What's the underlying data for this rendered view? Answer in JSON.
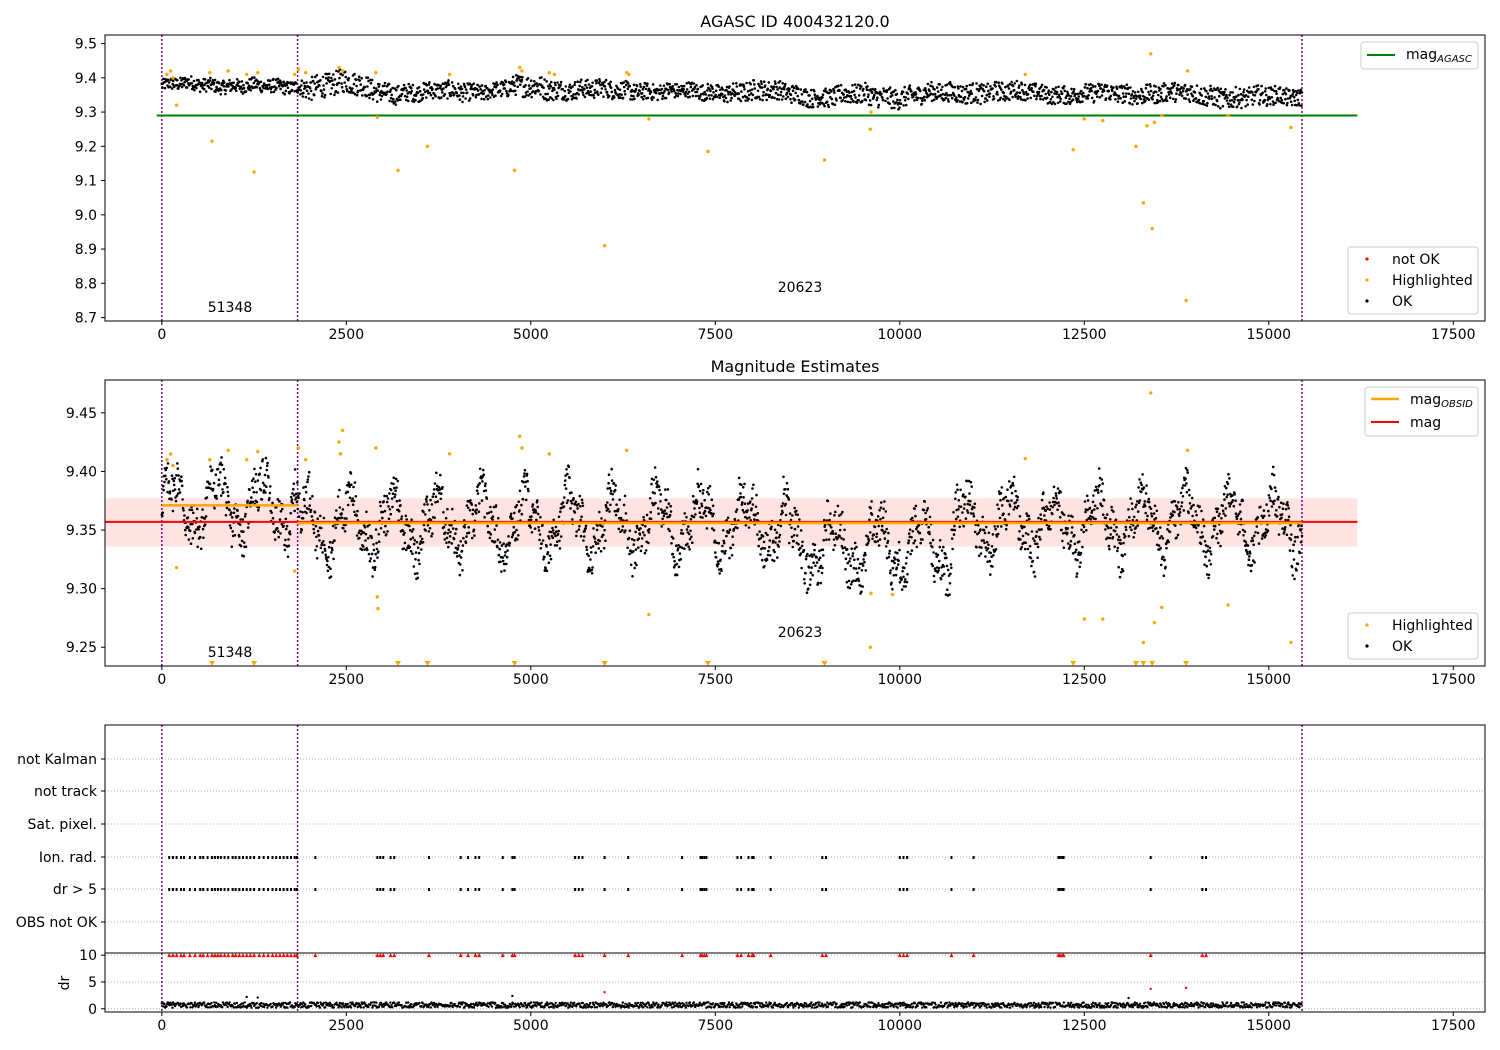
{
  "figure": {
    "title_top": "AGASC ID 400432120.0",
    "title_middle": "Magnitude Estimates"
  },
  "colors": {
    "ok": "#000000",
    "highlighted": "#ffa500",
    "not_ok": "#ff0000",
    "agasc_line": "#008000",
    "obsid_line": "#ffa500",
    "mag_line": "#ff0000",
    "band": "#ffc0c0",
    "obsid_divider": "#800080"
  },
  "legend_top": {
    "line": "mag_AGASC",
    "not_ok": "not OK",
    "highlighted": "Highlighted",
    "ok": "OK"
  },
  "legend_middle": {
    "obsid": "mag_OBSID",
    "mag": "mag",
    "highlighted": "Highlighted",
    "ok": "OK"
  },
  "obsid_labels": [
    "51348",
    "20623"
  ],
  "chart_data": [
    {
      "type": "scatter",
      "title": "AGASC ID 400432120.0",
      "xlim": [
        -770,
        17930
      ],
      "ylim": [
        8.69,
        9.525
      ],
      "xticks": [
        "0",
        "2500",
        "5000",
        "7500",
        "10000",
        "12500",
        "15000",
        "17500"
      ],
      "yticks": [
        "8.7",
        "8.8",
        "8.9",
        "9.0",
        "9.1",
        "9.2",
        "9.3",
        "9.4",
        "9.5"
      ],
      "mag_agasc": 9.29,
      "obsid_boundaries": [
        0,
        1840,
        15450
      ],
      "series": [
        {
          "name": "OK",
          "description": "continuous dense band of OK magnitude samples across x 0 to 15450",
          "x_range": [
            0,
            15450
          ],
          "envelope_upper": [
            [
              0,
              9.395
            ],
            [
              500,
              9.4
            ],
            [
              1000,
              9.4
            ],
            [
              1500,
              9.39
            ],
            [
              1840,
              9.395
            ],
            [
              2000,
              9.41
            ],
            [
              2500,
              9.42
            ],
            [
              3000,
              9.39
            ],
            [
              3500,
              9.38
            ],
            [
              4000,
              9.39
            ],
            [
              4500,
              9.385
            ],
            [
              5000,
              9.41
            ],
            [
              5500,
              9.395
            ],
            [
              6000,
              9.39
            ],
            [
              6500,
              9.39
            ],
            [
              7000,
              9.38
            ],
            [
              7500,
              9.385
            ],
            [
              8000,
              9.39
            ],
            [
              8500,
              9.385
            ],
            [
              9000,
              9.37
            ],
            [
              9500,
              9.38
            ],
            [
              10000,
              9.375
            ],
            [
              10500,
              9.38
            ],
            [
              11000,
              9.39
            ],
            [
              11500,
              9.385
            ],
            [
              12000,
              9.38
            ],
            [
              12500,
              9.38
            ],
            [
              13000,
              9.38
            ],
            [
              13500,
              9.385
            ],
            [
              14000,
              9.38
            ],
            [
              14500,
              9.375
            ],
            [
              15000,
              9.37
            ],
            [
              15450,
              9.37
            ]
          ],
          "envelope_lower": [
            [
              0,
              9.36
            ],
            [
              500,
              9.36
            ],
            [
              1000,
              9.36
            ],
            [
              1500,
              9.35
            ],
            [
              1840,
              9.355
            ],
            [
              2000,
              9.34
            ],
            [
              2500,
              9.35
            ],
            [
              3000,
              9.33
            ],
            [
              3500,
              9.33
            ],
            [
              4000,
              9.335
            ],
            [
              4500,
              9.34
            ],
            [
              5000,
              9.34
            ],
            [
              5500,
              9.34
            ],
            [
              6000,
              9.335
            ],
            [
              6500,
              9.34
            ],
            [
              7000,
              9.335
            ],
            [
              7500,
              9.335
            ],
            [
              8000,
              9.33
            ],
            [
              8500,
              9.33
            ],
            [
              9000,
              9.315
            ],
            [
              9500,
              9.32
            ],
            [
              10000,
              9.315
            ],
            [
              10500,
              9.325
            ],
            [
              11000,
              9.33
            ],
            [
              11500,
              9.33
            ],
            [
              12000,
              9.33
            ],
            [
              12500,
              9.325
            ],
            [
              13000,
              9.325
            ],
            [
              13500,
              9.33
            ],
            [
              14000,
              9.32
            ],
            [
              14500,
              9.315
            ],
            [
              15000,
              9.315
            ],
            [
              15450,
              9.32
            ]
          ]
        },
        {
          "name": "Highlighted",
          "points": [
            [
              70,
              9.41
            ],
            [
              120,
              9.42
            ],
            [
              150,
              9.4
            ],
            [
              200,
              9.32
            ],
            [
              650,
              9.415
            ],
            [
              680,
              9.215
            ],
            [
              900,
              9.42
            ],
            [
              1150,
              9.41
            ],
            [
              1250,
              9.125
            ],
            [
              1300,
              9.415
            ],
            [
              1800,
              9.41
            ],
            [
              1850,
              9.425
            ],
            [
              1950,
              9.415
            ],
            [
              2400,
              9.43
            ],
            [
              2450,
              9.42
            ],
            [
              2900,
              9.415
            ],
            [
              2920,
              9.285
            ],
            [
              3200,
              9.13
            ],
            [
              3600,
              9.2
            ],
            [
              3900,
              9.41
            ],
            [
              4780,
              9.13
            ],
            [
              4850,
              9.43
            ],
            [
              4880,
              9.42
            ],
            [
              5250,
              9.415
            ],
            [
              5320,
              9.41
            ],
            [
              6000,
              8.91
            ],
            [
              6300,
              9.415
            ],
            [
              6330,
              9.41
            ],
            [
              6600,
              9.28
            ],
            [
              7400,
              9.185
            ],
            [
              8980,
              9.16
            ],
            [
              9600,
              9.25
            ],
            [
              9610,
              9.3
            ],
            [
              11700,
              9.41
            ],
            [
              12350,
              9.19
            ],
            [
              12500,
              9.28
            ],
            [
              12750,
              9.275
            ],
            [
              13200,
              9.2
            ],
            [
              13300,
              9.035
            ],
            [
              13350,
              9.26
            ],
            [
              13400,
              9.47
            ],
            [
              13420,
              8.96
            ],
            [
              13450,
              9.27
            ],
            [
              13550,
              9.29
            ],
            [
              13900,
              9.42
            ],
            [
              13880,
              8.75
            ],
            [
              14450,
              9.29
            ],
            [
              15300,
              9.255
            ]
          ]
        },
        {
          "name": "not OK",
          "points": []
        }
      ]
    },
    {
      "type": "scatter",
      "title": "Magnitude Estimates",
      "xlim": [
        -770,
        17930
      ],
      "ylim": [
        9.234,
        9.478
      ],
      "xticks": [
        "0",
        "2500",
        "5000",
        "7500",
        "10000",
        "12500",
        "15000",
        "17500"
      ],
      "yticks": [
        "9.25",
        "9.30",
        "9.35",
        "9.40",
        "9.45"
      ],
      "mag": 9.357,
      "mag_band": [
        9.336,
        9.377
      ],
      "mag_obsid": [
        {
          "x": [
            0,
            1840
          ],
          "y": 9.371
        },
        {
          "x": [
            1840,
            15450
          ],
          "y": 9.356
        }
      ],
      "obsid_boundaries": [
        0,
        1840,
        15450
      ],
      "highlighted_points": [
        [
          70,
          9.41
        ],
        [
          120,
          9.415
        ],
        [
          150,
          9.405
        ],
        [
          200,
          9.318
        ],
        [
          650,
          9.41
        ],
        [
          900,
          9.418
        ],
        [
          1150,
          9.41
        ],
        [
          1300,
          9.417
        ],
        [
          1800,
          9.315
        ],
        [
          1850,
          9.42
        ],
        [
          1950,
          9.41
        ],
        [
          2400,
          9.425
        ],
        [
          2450,
          9.435
        ],
        [
          2420,
          9.415
        ],
        [
          2900,
          9.42
        ],
        [
          2920,
          9.293
        ],
        [
          2930,
          9.283
        ],
        [
          3900,
          9.415
        ],
        [
          4850,
          9.43
        ],
        [
          4880,
          9.42
        ],
        [
          5250,
          9.415
        ],
        [
          6300,
          9.418
        ],
        [
          6600,
          9.278
        ],
        [
          9600,
          9.25
        ],
        [
          9610,
          9.296
        ],
        [
          9900,
          9.295
        ],
        [
          11700,
          9.411
        ],
        [
          12500,
          9.274
        ],
        [
          12750,
          9.274
        ],
        [
          13300,
          9.254
        ],
        [
          13400,
          9.467
        ],
        [
          13450,
          9.271
        ],
        [
          13550,
          9.284
        ],
        [
          13900,
          9.418
        ],
        [
          14450,
          9.286
        ],
        [
          15300,
          9.254
        ]
      ],
      "below_range_markers_x": [
        680,
        1250,
        3200,
        3600,
        4780,
        6000,
        7400,
        8980,
        12350,
        13200,
        13300,
        13420,
        13880
      ]
    },
    {
      "type": "scatter",
      "title": "",
      "xlim": [
        -770,
        17930
      ],
      "xticks": [
        "0",
        "2500",
        "5000",
        "7500",
        "10000",
        "12500",
        "15000",
        "17500"
      ],
      "flag_rows": [
        "not Kalman",
        "not track",
        "Sat. pixel.",
        "Ion. rad.",
        "dr > 5",
        "OBS not OK"
      ],
      "flag_events_x": [
        100,
        150,
        200,
        260,
        300,
        380,
        450,
        520,
        560,
        620,
        680,
        720,
        760,
        800,
        850,
        900,
        960,
        1000,
        1050,
        1100,
        1150,
        1200,
        1250,
        1320,
        1380,
        1440,
        1500,
        1550,
        1600,
        1650,
        1700,
        1750,
        1800,
        1830,
        2080,
        2920,
        2960,
        3000,
        3100,
        3150,
        3620,
        4050,
        4150,
        4250,
        4300,
        4620,
        4750,
        4780,
        5600,
        5650,
        5700,
        6000,
        6320,
        7050,
        7300,
        7320,
        7350,
        7380,
        7800,
        7850,
        7950,
        8000,
        8020,
        8250,
        8950,
        9000,
        10000,
        10050,
        10100,
        10700,
        11000,
        12150,
        12170,
        12200,
        12220,
        13400,
        14100,
        14150
      ],
      "dr_ylabel": "dr",
      "dr_yticks": [
        "0",
        "5",
        "10"
      ],
      "dr_ylim": [
        -0.6,
        10.4
      ],
      "dr_outliers": [
        [
          4750,
          2.4
        ],
        [
          6000,
          3.1
        ],
        [
          13400,
          3.7
        ],
        [
          13880,
          3.9
        ],
        [
          1150,
          2.2
        ],
        [
          1300,
          2.1
        ],
        [
          13100,
          2.0
        ]
      ]
    }
  ]
}
